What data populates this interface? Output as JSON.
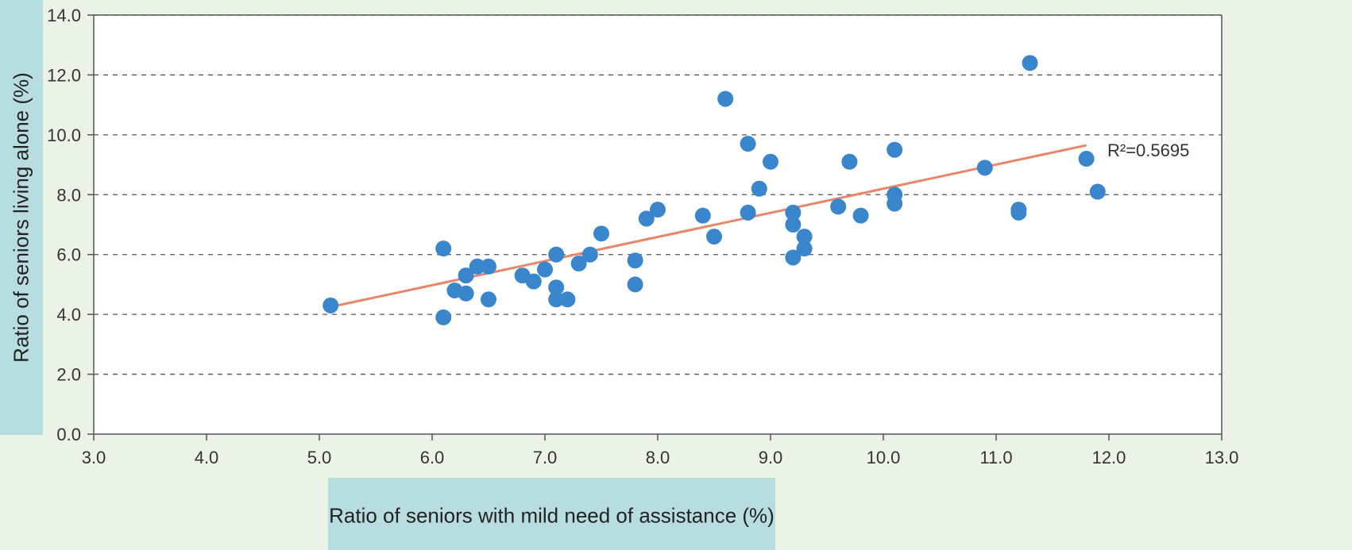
{
  "chart_data": {
    "type": "scatter",
    "xlabel": "Ratio of seniors with mild need of assistance (%)",
    "ylabel": "Ratio of seniors living alone (%)",
    "xlim": [
      3.0,
      13.0
    ],
    "ylim": [
      0.0,
      14.0
    ],
    "x_ticks": [
      "3.0",
      "4.0",
      "5.0",
      "6.0",
      "7.0",
      "8.0",
      "9.0",
      "10.0",
      "11.0",
      "12.0",
      "13.0"
    ],
    "y_ticks": [
      "0.0",
      "2.0",
      "4.0",
      "6.0",
      "8.0",
      "10.0",
      "12.0",
      "14.0"
    ],
    "grid": "horizontal-dashed",
    "points": [
      [
        5.1,
        4.3
      ],
      [
        6.1,
        6.2
      ],
      [
        6.1,
        3.9
      ],
      [
        6.2,
        4.8
      ],
      [
        6.3,
        5.3
      ],
      [
        6.3,
        4.7
      ],
      [
        6.4,
        5.6
      ],
      [
        6.5,
        5.6
      ],
      [
        6.5,
        4.5
      ],
      [
        6.8,
        5.3
      ],
      [
        6.9,
        5.1
      ],
      [
        7.0,
        5.5
      ],
      [
        7.1,
        6.0
      ],
      [
        7.1,
        4.9
      ],
      [
        7.1,
        4.5
      ],
      [
        7.2,
        4.5
      ],
      [
        7.3,
        5.7
      ],
      [
        7.4,
        6.0
      ],
      [
        7.5,
        6.7
      ],
      [
        7.8,
        5.8
      ],
      [
        7.8,
        5.0
      ],
      [
        7.9,
        7.2
      ],
      [
        8.0,
        7.5
      ],
      [
        8.4,
        7.3
      ],
      [
        8.5,
        6.6
      ],
      [
        8.6,
        11.2
      ],
      [
        8.8,
        9.7
      ],
      [
        8.8,
        7.4
      ],
      [
        8.9,
        8.2
      ],
      [
        9.0,
        9.1
      ],
      [
        9.2,
        7.4
      ],
      [
        9.2,
        7.0
      ],
      [
        9.2,
        5.9
      ],
      [
        9.3,
        6.6
      ],
      [
        9.3,
        6.2
      ],
      [
        9.6,
        7.6
      ],
      [
        9.7,
        9.1
      ],
      [
        9.8,
        7.3
      ],
      [
        10.1,
        9.5
      ],
      [
        10.1,
        8.0
      ],
      [
        10.1,
        7.7
      ],
      [
        10.9,
        8.9
      ],
      [
        11.2,
        7.5
      ],
      [
        11.2,
        7.4
      ],
      [
        11.3,
        12.4
      ],
      [
        11.8,
        9.2
      ],
      [
        11.9,
        8.1
      ]
    ],
    "trendline": {
      "x": [
        5.1,
        11.8
      ],
      "y": [
        4.25,
        9.65
      ]
    },
    "annotation": "R²=0.5695",
    "colors": {
      "points": "#3a86cc",
      "trendline": "#e8866a",
      "grid": "#555555",
      "background": "#eaf3e6",
      "label_box": "#b8dde0"
    }
  }
}
